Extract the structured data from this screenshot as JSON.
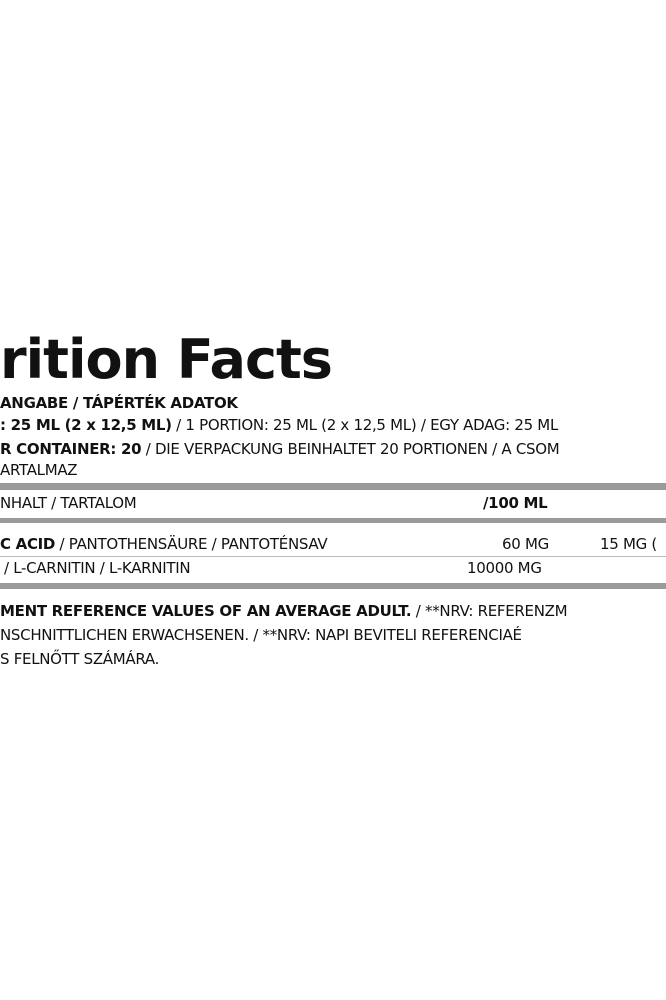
{
  "label": {
    "title": "rition Facts",
    "subtitle": "ANGABE / TÁPÉRTÉK ADATOK",
    "serving": {
      "bold": ": 25 ML (2 x 12,5 ML)",
      "text": " / 1 PORTION: 25 ML (2 x 12,5 ML) / EGY ADAG: 25 ML"
    },
    "container": {
      "bold": "R CONTAINER: 20",
      "text": " / DIE VERPACKUNG BEINHALTET 20 PORTIONEN / A CSOM",
      "text2": "ARTALMAZ"
    },
    "header": {
      "name": "NHALT / TARTALOM",
      "per100": "/100 ML"
    },
    "rows": [
      {
        "bold": "C ACID",
        "name": " / PANTOTHENSÄURE / PANTOTÉNSAV",
        "per100": "60 MG",
        "serving": "15 MG ("
      },
      {
        "bold": "",
        "name": "/ L-CARNITIN / L-KARNITIN",
        "per100": "10000 MG",
        "serving": ""
      }
    ],
    "footnote": {
      "bold": "MENT REFERENCE VALUES OF AN AVERAGE ADULT.",
      "text": " / **NRV: REFERENZM",
      "line2": "NSCHNITTLICHEN ERWACHSENEN. / **NRV: NAPI BEVITELI REFERENCIAÉ",
      "line3": "S FELNŐTT SZÁMÁRA."
    }
  }
}
